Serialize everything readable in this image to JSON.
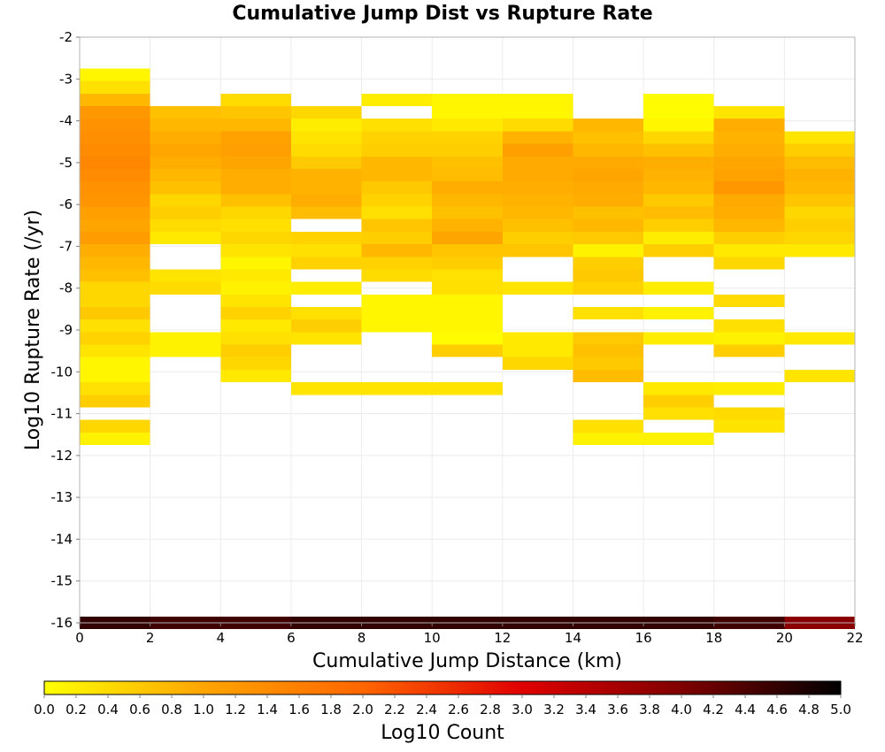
{
  "chart_data": {
    "type": "heatmap",
    "title": "Cumulative Jump Dist vs Rupture Rate",
    "xlabel": "Cumulative Jump Distance (km)",
    "ylabel": "Log10 Rupture Rate (/yr)",
    "xlim": [
      0,
      22
    ],
    "ylim": [
      -16,
      -2
    ],
    "x_ticks": [
      "0",
      "2",
      "4",
      "6",
      "8",
      "10",
      "12",
      "14",
      "16",
      "18",
      "20",
      "22"
    ],
    "y_ticks": [
      "-2",
      "-3",
      "-4",
      "-5",
      "-6",
      "-7",
      "-8",
      "-9",
      "-10",
      "-11",
      "-12",
      "-13",
      "-14",
      "-15",
      "-16"
    ],
    "x_bin_width": 2,
    "y_bin_height": 0.3,
    "grid": true,
    "colorbar": {
      "label": "Log10 Count",
      "range": [
        0,
        5
      ],
      "ticks": [
        "0.0",
        "0.2",
        "0.4",
        "0.6",
        "0.8",
        "1.0",
        "1.2",
        "1.4",
        "1.6",
        "1.8",
        "2.0",
        "2.2",
        "2.4",
        "2.6",
        "2.8",
        "3.0",
        "3.2",
        "3.4",
        "3.6",
        "3.8",
        "4.0",
        "4.2",
        "4.4",
        "4.6",
        "4.8",
        "5.0"
      ],
      "colors": [
        "#ffff00",
        "#ffa500",
        "#ff6600",
        "#e00000",
        "#800000",
        "#000000"
      ]
    },
    "columns": [
      {
        "x": 0,
        "cells": [
          [
            -2.9,
            0.1
          ],
          [
            -3.2,
            0.35
          ],
          [
            -3.5,
            0.8
          ],
          [
            -3.8,
            1.2
          ],
          [
            -4.1,
            1.3
          ],
          [
            -4.4,
            1.35
          ],
          [
            -4.7,
            1.4
          ],
          [
            -5.0,
            1.5
          ],
          [
            -5.3,
            1.4
          ],
          [
            -5.6,
            1.3
          ],
          [
            -5.9,
            1.25
          ],
          [
            -6.2,
            1.1
          ],
          [
            -6.5,
            1.0
          ],
          [
            -6.8,
            1.15
          ],
          [
            -7.1,
            0.9
          ],
          [
            -7.4,
            0.8
          ],
          [
            -7.7,
            0.7
          ],
          [
            -8.0,
            0.45
          ],
          [
            -8.3,
            0.45
          ],
          [
            -8.6,
            0.6
          ],
          [
            -8.9,
            0.35
          ],
          [
            -9.2,
            0.5
          ],
          [
            -9.5,
            0.3
          ],
          [
            -9.8,
            0.1
          ],
          [
            -10.1,
            0.1
          ],
          [
            -10.4,
            0.35
          ],
          [
            -10.7,
            0.55
          ],
          [
            -11.3,
            0.45
          ],
          [
            -11.6,
            0.15
          ],
          [
            -16.0,
            4.6
          ]
        ]
      },
      {
        "x": 2,
        "cells": [
          [
            -3.8,
            0.7
          ],
          [
            -4.1,
            0.8
          ],
          [
            -4.4,
            0.9
          ],
          [
            -4.7,
            1.0
          ],
          [
            -5.0,
            0.9
          ],
          [
            -5.3,
            0.8
          ],
          [
            -5.6,
            0.7
          ],
          [
            -5.9,
            0.45
          ],
          [
            -6.2,
            0.55
          ],
          [
            -6.5,
            0.4
          ],
          [
            -6.8,
            0.25
          ],
          [
            -7.7,
            0.3
          ],
          [
            -8.0,
            0.4
          ],
          [
            -9.2,
            0.15
          ],
          [
            -9.5,
            0.15
          ],
          [
            -16.0,
            4.5
          ]
        ]
      },
      {
        "x": 4,
        "cells": [
          [
            -3.5,
            0.4
          ],
          [
            -3.8,
            0.65
          ],
          [
            -4.1,
            0.8
          ],
          [
            -4.4,
            1.05
          ],
          [
            -4.7,
            1.1
          ],
          [
            -5.0,
            1.0
          ],
          [
            -5.3,
            0.9
          ],
          [
            -5.6,
            0.9
          ],
          [
            -5.9,
            0.7
          ],
          [
            -6.2,
            0.45
          ],
          [
            -6.5,
            0.35
          ],
          [
            -6.8,
            0.45
          ],
          [
            -7.1,
            0.3
          ],
          [
            -7.4,
            0.1
          ],
          [
            -7.7,
            0.25
          ],
          [
            -8.0,
            0.15
          ],
          [
            -8.3,
            0.3
          ],
          [
            -8.6,
            0.5
          ],
          [
            -8.9,
            0.25
          ],
          [
            -9.2,
            0.35
          ],
          [
            -9.5,
            0.55
          ],
          [
            -9.8,
            0.45
          ],
          [
            -10.1,
            0.25
          ],
          [
            -16.0,
            4.5
          ]
        ]
      },
      {
        "x": 6,
        "cells": [
          [
            -3.8,
            0.45
          ],
          [
            -4.1,
            0.2
          ],
          [
            -4.4,
            0.3
          ],
          [
            -4.7,
            0.4
          ],
          [
            -5.0,
            0.6
          ],
          [
            -5.3,
            0.85
          ],
          [
            -5.6,
            0.85
          ],
          [
            -5.9,
            0.9
          ],
          [
            -6.2,
            0.75
          ],
          [
            -6.8,
            0.5
          ],
          [
            -7.1,
            0.35
          ],
          [
            -7.4,
            0.5
          ],
          [
            -8.0,
            0.2
          ],
          [
            -8.6,
            0.35
          ],
          [
            -8.9,
            0.55
          ],
          [
            -9.2,
            0.3
          ],
          [
            -10.4,
            0.3
          ],
          [
            -16.0,
            4.6
          ]
        ]
      },
      {
        "x": 8,
        "cells": [
          [
            -3.5,
            0.2
          ],
          [
            -4.1,
            0.35
          ],
          [
            -4.4,
            0.5
          ],
          [
            -4.7,
            0.55
          ],
          [
            -5.0,
            0.8
          ],
          [
            -5.3,
            0.8
          ],
          [
            -5.6,
            0.6
          ],
          [
            -5.9,
            0.5
          ],
          [
            -6.2,
            0.35
          ],
          [
            -6.5,
            0.65
          ],
          [
            -6.8,
            0.55
          ],
          [
            -7.1,
            0.8
          ],
          [
            -7.4,
            0.5
          ],
          [
            -7.7,
            0.4
          ],
          [
            -8.3,
            0.1
          ],
          [
            -8.6,
            0.1
          ],
          [
            -8.9,
            0.1
          ],
          [
            -10.4,
            0.3
          ],
          [
            -16.0,
            4.6
          ]
        ]
      },
      {
        "x": 10,
        "cells": [
          [
            -3.5,
            0.1
          ],
          [
            -3.8,
            0.1
          ],
          [
            -4.1,
            0.25
          ],
          [
            -4.4,
            0.5
          ],
          [
            -4.7,
            0.55
          ],
          [
            -5.0,
            0.7
          ],
          [
            -5.3,
            0.75
          ],
          [
            -5.6,
            0.9
          ],
          [
            -5.9,
            0.8
          ],
          [
            -6.2,
            0.7
          ],
          [
            -6.5,
            0.85
          ],
          [
            -6.8,
            1.0
          ],
          [
            -7.1,
            0.65
          ],
          [
            -7.4,
            0.55
          ],
          [
            -7.7,
            0.35
          ],
          [
            -8.0,
            0.35
          ],
          [
            -8.3,
            0.1
          ],
          [
            -8.6,
            0.1
          ],
          [
            -8.9,
            0.1
          ],
          [
            -9.2,
            0.05
          ],
          [
            -9.5,
            0.55
          ],
          [
            -10.4,
            0.3
          ],
          [
            -16.0,
            4.6
          ]
        ]
      },
      {
        "x": 12,
        "cells": [
          [
            -3.5,
            0.1
          ],
          [
            -3.8,
            0.1
          ],
          [
            -4.1,
            0.4
          ],
          [
            -4.4,
            0.85
          ],
          [
            -4.7,
            1.1
          ],
          [
            -5.0,
            0.95
          ],
          [
            -5.3,
            0.95
          ],
          [
            -5.6,
            0.9
          ],
          [
            -5.9,
            0.85
          ],
          [
            -6.2,
            0.8
          ],
          [
            -6.5,
            0.7
          ],
          [
            -6.8,
            0.55
          ],
          [
            -7.1,
            0.65
          ],
          [
            -8.0,
            0.3
          ],
          [
            -9.2,
            0.25
          ],
          [
            -9.5,
            0.25
          ],
          [
            -9.8,
            0.45
          ],
          [
            -16.0,
            4.6
          ]
        ]
      },
      {
        "x": 14,
        "cells": [
          [
            -4.1,
            0.8
          ],
          [
            -4.4,
            0.7
          ],
          [
            -4.7,
            0.8
          ],
          [
            -5.0,
            0.95
          ],
          [
            -5.3,
            1.0
          ],
          [
            -5.6,
            0.95
          ],
          [
            -5.9,
            0.9
          ],
          [
            -6.2,
            0.7
          ],
          [
            -6.5,
            0.8
          ],
          [
            -6.8,
            0.6
          ],
          [
            -7.1,
            0.15
          ],
          [
            -7.4,
            0.55
          ],
          [
            -7.7,
            0.6
          ],
          [
            -8.0,
            0.5
          ],
          [
            -8.6,
            0.35
          ],
          [
            -9.2,
            0.6
          ],
          [
            -9.5,
            0.7
          ],
          [
            -9.8,
            0.6
          ],
          [
            -10.1,
            0.75
          ],
          [
            -11.3,
            0.35
          ],
          [
            -11.6,
            0.15
          ],
          [
            -16.0,
            4.6
          ]
        ]
      },
      {
        "x": 16,
        "cells": [
          [
            -3.5,
            0.05
          ],
          [
            -3.8,
            0.05
          ],
          [
            -4.1,
            0.1
          ],
          [
            -4.4,
            0.45
          ],
          [
            -4.7,
            0.7
          ],
          [
            -5.0,
            0.9
          ],
          [
            -5.3,
            0.85
          ],
          [
            -5.6,
            0.8
          ],
          [
            -5.9,
            0.6
          ],
          [
            -6.2,
            0.75
          ],
          [
            -6.5,
            0.55
          ],
          [
            -6.8,
            0.2
          ],
          [
            -7.1,
            0.55
          ],
          [
            -8.0,
            0.2
          ],
          [
            -8.6,
            0.15
          ],
          [
            -9.2,
            0.2
          ],
          [
            -10.4,
            0.25
          ],
          [
            -10.7,
            0.55
          ],
          [
            -11.0,
            0.35
          ],
          [
            -11.6,
            0.15
          ],
          [
            -16.0,
            4.6
          ]
        ]
      },
      {
        "x": 18,
        "cells": [
          [
            -3.8,
            0.3
          ],
          [
            -4.1,
            0.9
          ],
          [
            -4.4,
            0.85
          ],
          [
            -4.7,
            0.9
          ],
          [
            -5.0,
            1.0
          ],
          [
            -5.3,
            1.05
          ],
          [
            -5.6,
            1.2
          ],
          [
            -5.9,
            0.95
          ],
          [
            -6.2,
            0.9
          ],
          [
            -6.5,
            0.8
          ],
          [
            -6.8,
            0.55
          ],
          [
            -7.1,
            0.25
          ],
          [
            -7.4,
            0.45
          ],
          [
            -8.3,
            0.4
          ],
          [
            -8.9,
            0.35
          ],
          [
            -9.2,
            0.15
          ],
          [
            -9.5,
            0.55
          ],
          [
            -10.4,
            0.2
          ],
          [
            -11.0,
            0.4
          ],
          [
            -11.3,
            0.3
          ],
          [
            -16.0,
            4.5
          ]
        ]
      },
      {
        "x": 20,
        "cells": [
          [
            -4.4,
            0.3
          ],
          [
            -4.7,
            0.55
          ],
          [
            -5.0,
            0.75
          ],
          [
            -5.3,
            0.85
          ],
          [
            -5.6,
            0.8
          ],
          [
            -5.9,
            0.65
          ],
          [
            -6.2,
            0.45
          ],
          [
            -6.5,
            0.55
          ],
          [
            -6.8,
            0.45
          ],
          [
            -7.1,
            0.25
          ],
          [
            -9.2,
            0.25
          ],
          [
            -10.1,
            0.3
          ],
          [
            -16.0,
            3.9
          ]
        ]
      }
    ]
  }
}
